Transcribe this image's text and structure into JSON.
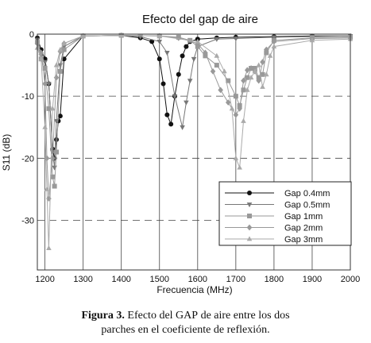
{
  "chart_data": {
    "type": "line",
    "title": "Efecto del gap de aire",
    "xlabel": "Frecuencia (MHz)",
    "ylabel": "S11 (dB)",
    "xlim": [
      1180,
      2000
    ],
    "ylim": [
      -38,
      0
    ],
    "xticks": [
      1200,
      1300,
      1400,
      1500,
      1600,
      1700,
      1800,
      1900,
      2000
    ],
    "yticks": [
      0,
      -10,
      -20,
      -30
    ],
    "grid": "vertical solid, horizontal dashed",
    "legend_position": "lower-right",
    "series": [
      {
        "name": "Gap 0.4mm",
        "marker": "circle",
        "color": "#111111",
        "x": [
          1180,
          1190,
          1200,
          1210,
          1220,
          1225,
          1230,
          1235,
          1240,
          1250,
          1300,
          1400,
          1450,
          1480,
          1500,
          1510,
          1520,
          1530,
          1540,
          1550,
          1560,
          1570,
          1580,
          1600,
          1650,
          1700,
          1800,
          1900,
          2000
        ],
        "y": [
          -0.6,
          -2.5,
          -4,
          -8,
          -18.5,
          -20,
          -17,
          -14,
          -13.2,
          -4,
          -0.3,
          -0.2,
          -0.6,
          -1.2,
          -4,
          -8,
          -13,
          -14.5,
          -10,
          -6.5,
          -3.5,
          -2,
          -1.2,
          -0.8,
          -0.6,
          -0.5,
          -0.4,
          -0.3,
          -0.3
        ]
      },
      {
        "name": "Gap 0.5mm",
        "marker": "triangle-down",
        "color": "#777777",
        "x": [
          1180,
          1190,
          1200,
          1210,
          1220,
          1225,
          1230,
          1240,
          1250,
          1300,
          1400,
          1450,
          1500,
          1520,
          1540,
          1560,
          1570,
          1580,
          1590,
          1600,
          1650,
          1700,
          1800,
          1900,
          2000
        ],
        "y": [
          -0.9,
          -3.5,
          -4.5,
          -8,
          -19,
          -21.5,
          -14,
          -5,
          -2,
          -0.3,
          -0.2,
          -0.4,
          -1.2,
          -3,
          -10,
          -15,
          -11,
          -7.5,
          -4,
          -2,
          -0.8,
          -0.7,
          -0.5,
          -0.4,
          -0.3
        ]
      },
      {
        "name": "Gap 1mm",
        "marker": "square",
        "color": "#999999",
        "x": [
          1180,
          1190,
          1200,
          1210,
          1220,
          1225,
          1230,
          1240,
          1250,
          1300,
          1400,
          1500,
          1550,
          1580,
          1600,
          1620,
          1650,
          1680,
          1700,
          1710,
          1720,
          1730,
          1740,
          1750,
          1760,
          1770,
          1780,
          1800,
          1900,
          2000
        ],
        "y": [
          -1.3,
          -4,
          -5.5,
          -12,
          -23,
          -24.5,
          -19,
          -6,
          -2.5,
          -0.3,
          -0.2,
          -0.3,
          -0.5,
          -1,
          -2,
          -3.5,
          -5,
          -7.5,
          -10,
          -11.5,
          -9,
          -7,
          -5.5,
          -5.5,
          -7,
          -6.5,
          -3,
          -1,
          -0.6,
          -0.5
        ]
      },
      {
        "name": "Gap 2mm",
        "marker": "diamond",
        "color": "#999999",
        "x": [
          1180,
          1190,
          1200,
          1205,
          1210,
          1220,
          1230,
          1240,
          1250,
          1300,
          1400,
          1500,
          1550,
          1600,
          1620,
          1640,
          1660,
          1680,
          1700,
          1710,
          1720,
          1730,
          1740,
          1750,
          1760,
          1770,
          1780,
          1800,
          1900,
          2000
        ],
        "y": [
          -1.5,
          -3,
          -8,
          -20,
          -26.5,
          -20,
          -7,
          -2.8,
          -1.5,
          -0.3,
          -0.2,
          -0.3,
          -0.6,
          -1.5,
          -3,
          -6,
          -9,
          -11,
          -13,
          -12,
          -7.5,
          -5.8,
          -5.5,
          -6,
          -7.5,
          -4.5,
          -2.5,
          -1.2,
          -0.7,
          -0.6
        ]
      },
      {
        "name": "Gap 3mm",
        "marker": "triangle-up",
        "color": "#aaaaaa",
        "x": [
          1180,
          1190,
          1200,
          1205,
          1210,
          1220,
          1230,
          1240,
          1250,
          1300,
          1400,
          1500,
          1600,
          1650,
          1670,
          1690,
          1700,
          1710,
          1720,
          1730,
          1740,
          1750,
          1760,
          1770,
          1780,
          1790,
          1800,
          1900,
          2000
        ],
        "y": [
          -2.2,
          -4,
          -15,
          -25,
          -34.5,
          -12,
          -5,
          -2.5,
          -1.5,
          -0.3,
          -0.2,
          -0.3,
          -1.2,
          -3.5,
          -6,
          -12,
          -20,
          -21.5,
          -14,
          -9,
          -7,
          -6,
          -5,
          -8.5,
          -6.5,
          -3.5,
          -2,
          -1,
          -0.8
        ]
      }
    ]
  },
  "caption": {
    "label": "Figura 3.",
    "line1_a": "Efecto del",
    "line1_gap": "GAP",
    "line1_b": "de aire entre los dos",
    "line2": "parches en el coeficiente de reflexión."
  }
}
